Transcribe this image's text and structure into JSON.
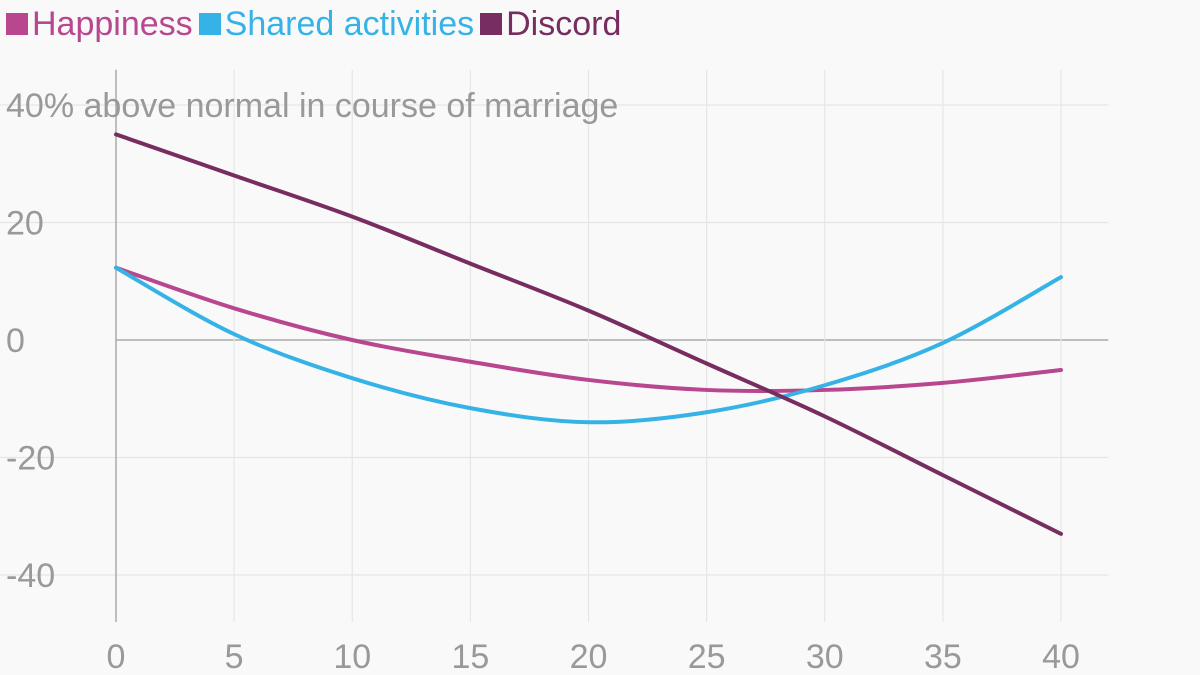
{
  "chart_data": {
    "type": "line",
    "title": "",
    "xlabel": "",
    "ylabel": "",
    "y_unit_label": "40% above normal in course of marriage",
    "xlim": [
      0,
      42
    ],
    "ylim": [
      -48,
      46
    ],
    "x_ticks": [
      "0",
      "5",
      "10",
      "15",
      "20",
      "25",
      "30",
      "35",
      "40"
    ],
    "y_ticks": [
      "20",
      "0",
      "-20",
      "-40"
    ],
    "grid": true,
    "legend_position": "top-left",
    "x": [
      0,
      5,
      10,
      15,
      20,
      25,
      30,
      35,
      40
    ],
    "series": [
      {
        "name": "Happiness",
        "color": "#b8478f",
        "values": [
          12.3,
          5.4,
          0,
          -3.7,
          -6.8,
          -8.5,
          -8.5,
          -7.3,
          -5.1
        ]
      },
      {
        "name": "Shared activities",
        "color": "#35b3e6",
        "values": [
          12.3,
          1,
          -6.5,
          -11.6,
          -14,
          -12.3,
          -7.7,
          -0.5,
          10.7
        ]
      },
      {
        "name": "Discord",
        "color": "#772d5f",
        "values": [
          35,
          28,
          21,
          13,
          5,
          -4,
          -13,
          -23,
          -33
        ]
      }
    ]
  }
}
